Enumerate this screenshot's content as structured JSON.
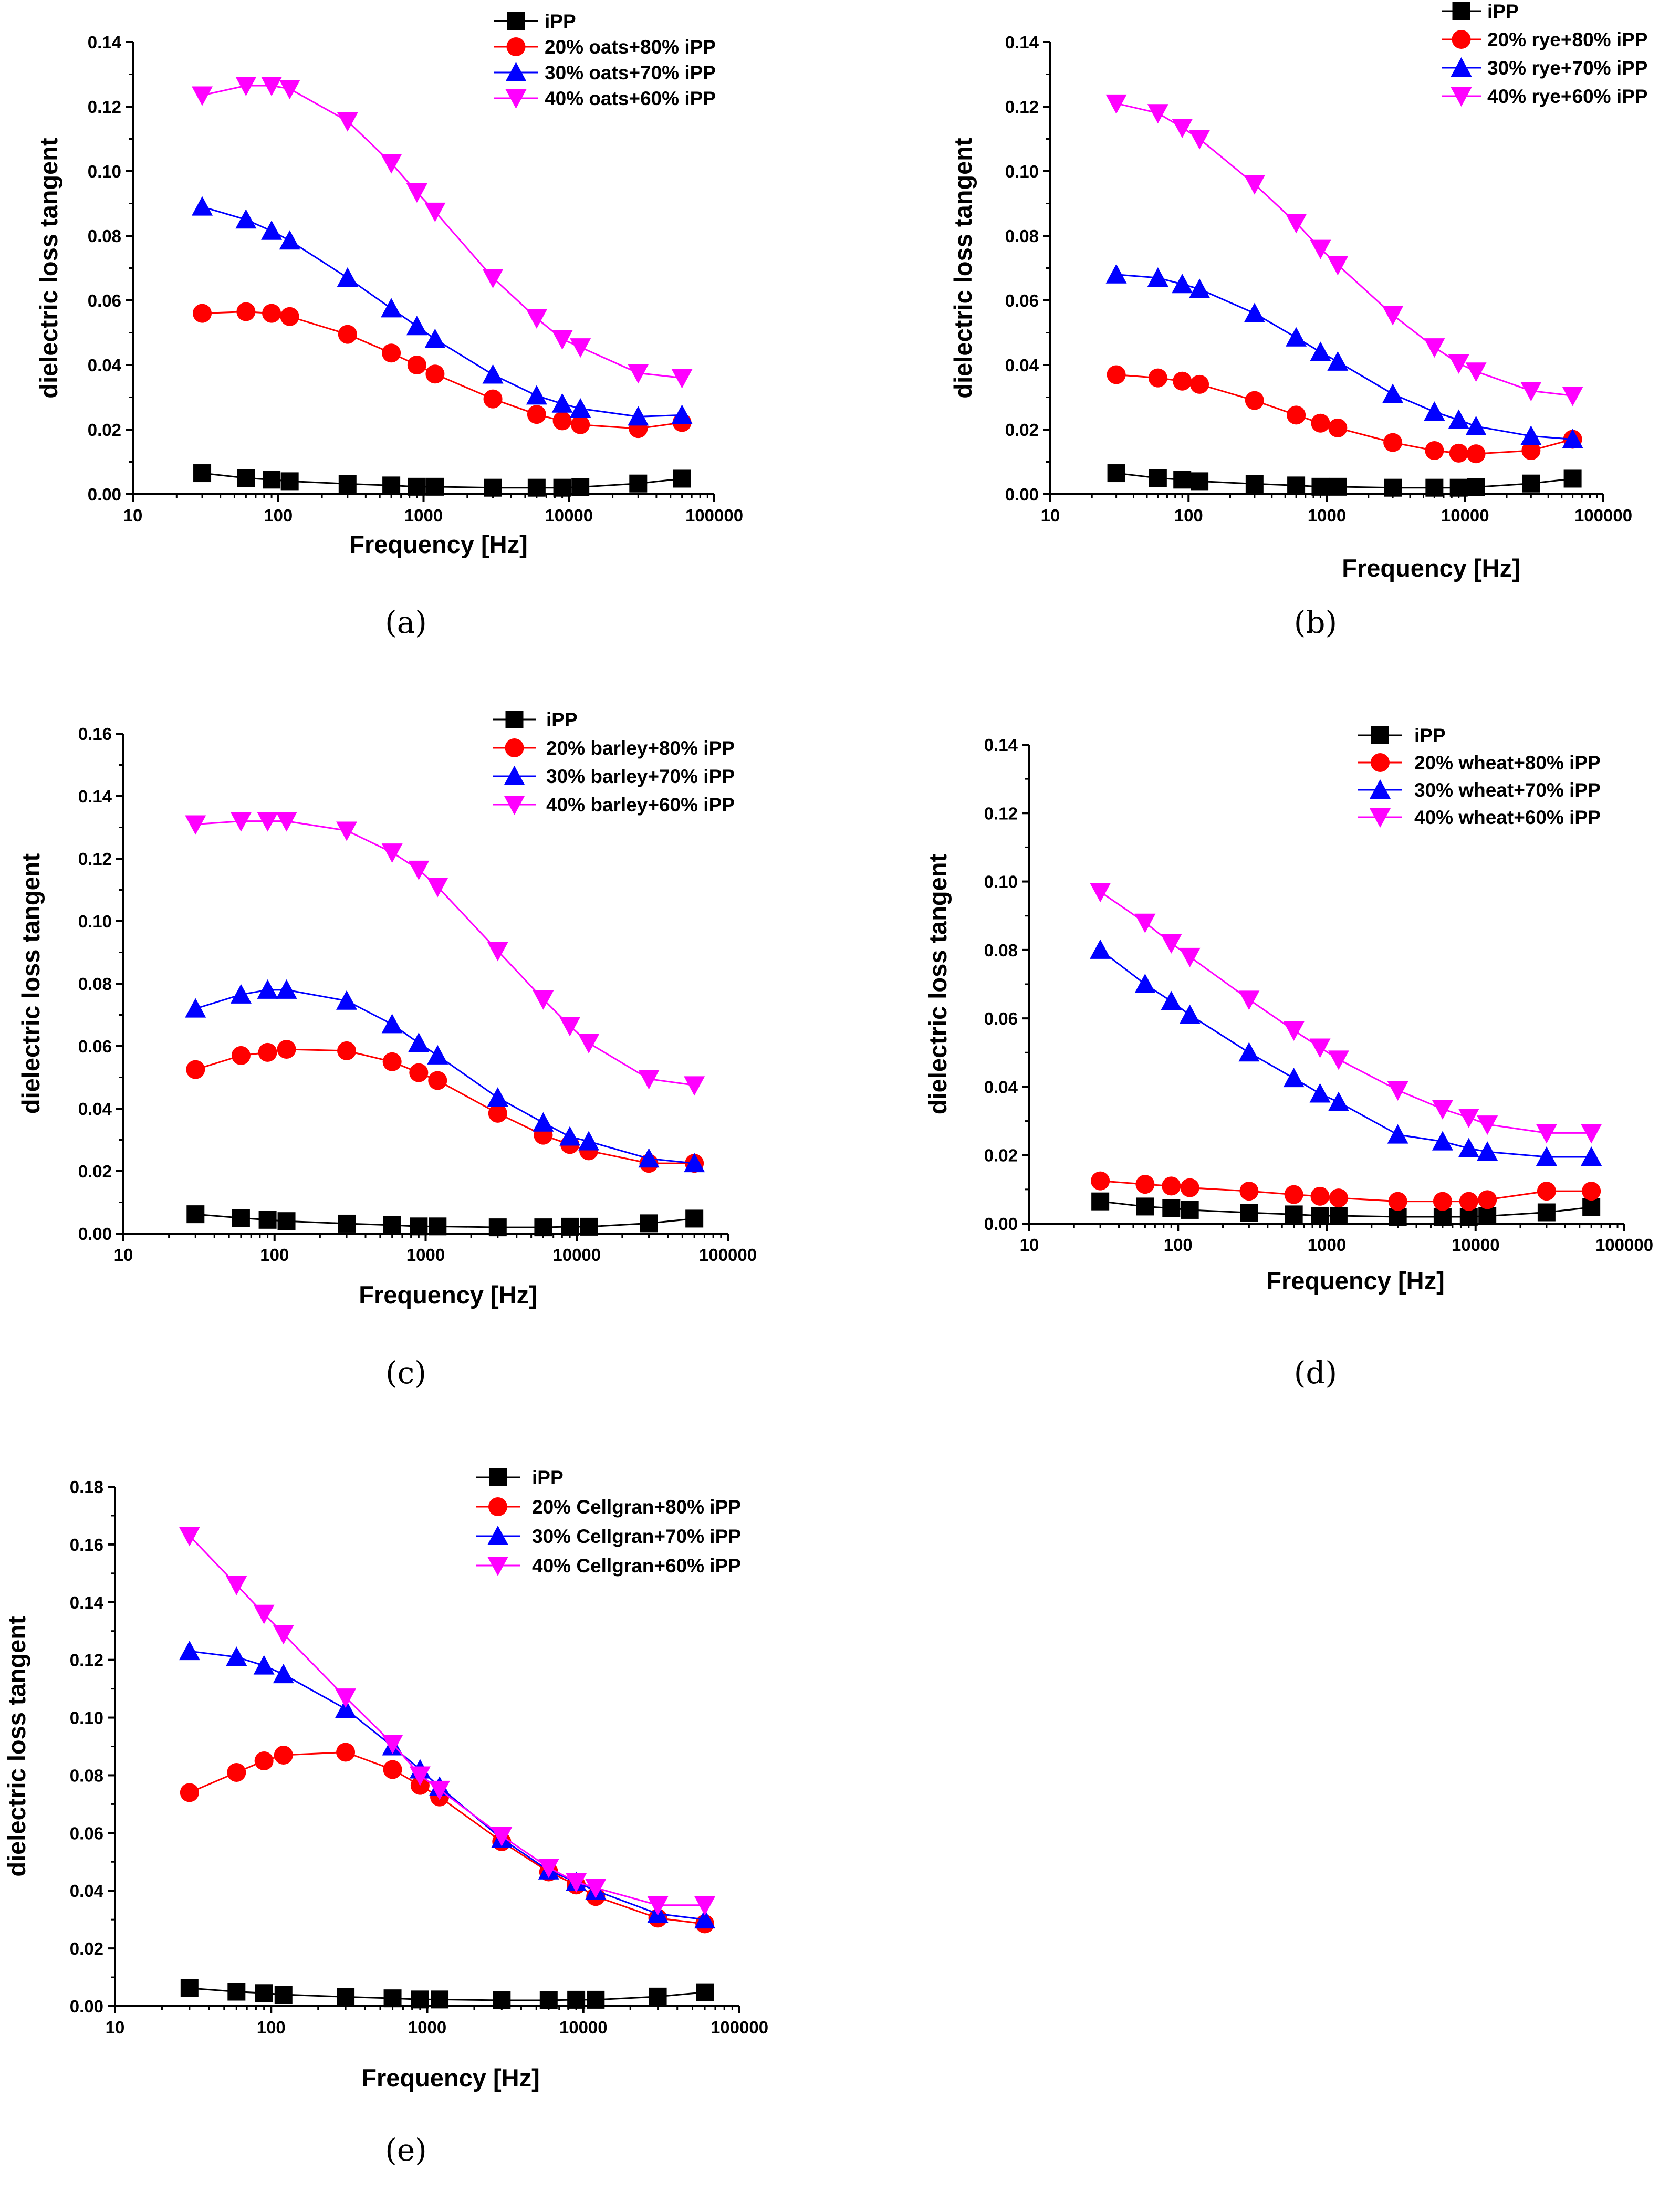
{
  "colors": {
    "iPP": "#000000",
    "20": "#ff0000",
    "30": "#0000ff",
    "40": "#ff00ff"
  },
  "chart_data": [
    {
      "label": "(a)",
      "type": "line",
      "xscale": "log",
      "xlabel": "Frequency [Hz]",
      "ylabel": "dielectric loss tangent",
      "xlim": [
        10,
        100000
      ],
      "ylim": [
        0,
        0.14
      ],
      "xticks": [
        "10",
        "100",
        "1000",
        "10000",
        "100000"
      ],
      "yticks": [
        "0.00",
        "0.02",
        "0.04",
        "0.06",
        "0.08",
        "0.10",
        "0.12",
        "0.14"
      ],
      "legend_position": "top-right",
      "x": [
        30,
        60,
        90,
        120,
        300,
        600,
        900,
        1200,
        3000,
        6000,
        9000,
        12000,
        30000,
        60000
      ],
      "series": [
        {
          "name": "iPP",
          "marker": "square",
          "values": [
            0.0065,
            0.005,
            0.0045,
            0.004,
            0.0032,
            0.0027,
            0.0023,
            0.0023,
            0.002,
            0.002,
            0.002,
            0.0022,
            0.0033,
            0.0048
          ]
        },
        {
          "name": "20% oats+80% iPP",
          "marker": "circle",
          "values": [
            0.056,
            0.0565,
            0.056,
            0.055,
            0.0495,
            0.0437,
            0.04,
            0.0372,
            0.0295,
            0.0247,
            0.0227,
            0.0215,
            0.0203,
            0.0222
          ]
        },
        {
          "name": "30% oats+70% iPP",
          "marker": "triangle-up",
          "values": [
            0.089,
            0.085,
            0.0815,
            0.0785,
            0.067,
            0.0575,
            0.052,
            0.048,
            0.037,
            0.0305,
            0.028,
            0.0265,
            0.024,
            0.0245
          ]
        },
        {
          "name": "40% oats+60% iPP",
          "marker": "triangle-down",
          "values": [
            0.1235,
            0.1265,
            0.1265,
            0.1255,
            0.1155,
            0.1025,
            0.0935,
            0.0875,
            0.067,
            0.0545,
            0.048,
            0.0455,
            0.0375,
            0.036
          ]
        }
      ]
    },
    {
      "label": "(b)",
      "type": "line",
      "xscale": "log",
      "xlabel": "Frequency [Hz]",
      "ylabel": "dielectric loss tangent",
      "xlim": [
        10,
        100000
      ],
      "ylim": [
        0,
        0.14
      ],
      "xticks": [
        "10",
        "100",
        "1000",
        "10000",
        "100000"
      ],
      "yticks": [
        "0.00",
        "0.02",
        "0.04",
        "0.06",
        "0.08",
        "0.10",
        "0.12",
        "0.14"
      ],
      "legend_position": "top-right",
      "x": [
        30,
        60,
        90,
        120,
        300,
        600,
        900,
        1200,
        3000,
        6000,
        9000,
        12000,
        30000,
        60000
      ],
      "series": [
        {
          "name": "iPP",
          "marker": "square",
          "values": [
            0.0065,
            0.005,
            0.0045,
            0.004,
            0.0032,
            0.0027,
            0.0023,
            0.0023,
            0.002,
            0.002,
            0.002,
            0.0022,
            0.0033,
            0.0048
          ]
        },
        {
          "name": "20% rye+80% iPP",
          "marker": "circle",
          "values": [
            0.037,
            0.036,
            0.035,
            0.034,
            0.029,
            0.0245,
            0.022,
            0.0205,
            0.016,
            0.0135,
            0.0127,
            0.0125,
            0.0135,
            0.017
          ]
        },
        {
          "name": "30% rye+70% iPP",
          "marker": "triangle-up",
          "values": [
            0.068,
            0.067,
            0.065,
            0.0635,
            0.056,
            0.0485,
            0.044,
            0.041,
            0.031,
            0.0255,
            0.023,
            0.021,
            0.018,
            0.017
          ]
        },
        {
          "name": "40% rye+60% iPP",
          "marker": "triangle-down",
          "values": [
            0.121,
            0.118,
            0.1135,
            0.11,
            0.096,
            0.084,
            0.076,
            0.071,
            0.0555,
            0.0455,
            0.0405,
            0.038,
            0.032,
            0.0305
          ]
        }
      ]
    },
    {
      "label": "(c)",
      "type": "line",
      "xscale": "log",
      "xlabel": "Frequency [Hz]",
      "ylabel": "dielectric loss tangent",
      "xlim": [
        10,
        100000
      ],
      "ylim": [
        0,
        0.16
      ],
      "xticks": [
        "10",
        "100",
        "1000",
        "10000",
        "100000"
      ],
      "yticks": [
        "0.00",
        "0.02",
        "0.04",
        "0.06",
        "0.08",
        "0.10",
        "0.12",
        "0.14",
        "0.16"
      ],
      "legend_position": "top-right",
      "x": [
        30,
        60,
        90,
        120,
        300,
        600,
        900,
        1200,
        3000,
        6000,
        9000,
        12000,
        30000,
        60000
      ],
      "series": [
        {
          "name": "iPP",
          "marker": "square",
          "values": [
            0.0062,
            0.005,
            0.0044,
            0.004,
            0.0032,
            0.0027,
            0.0023,
            0.0023,
            0.002,
            0.002,
            0.0022,
            0.0022,
            0.0033,
            0.0048
          ]
        },
        {
          "name": "20% barley+80% iPP",
          "marker": "circle",
          "values": [
            0.0525,
            0.057,
            0.058,
            0.059,
            0.0585,
            0.055,
            0.0515,
            0.049,
            0.0385,
            0.0315,
            0.0285,
            0.0265,
            0.0225,
            0.0225
          ]
        },
        {
          "name": "30% barley+70% iPP",
          "marker": "triangle-up",
          "values": [
            0.072,
            0.0765,
            0.078,
            0.078,
            0.0745,
            0.067,
            0.061,
            0.057,
            0.0435,
            0.0355,
            0.031,
            0.0295,
            0.024,
            0.0225
          ]
        },
        {
          "name": "40% barley+60% iPP",
          "marker": "triangle-down",
          "values": [
            0.131,
            0.132,
            0.132,
            0.132,
            0.129,
            0.122,
            0.1165,
            0.111,
            0.0905,
            0.075,
            0.0665,
            0.061,
            0.0495,
            0.0475
          ]
        }
      ]
    },
    {
      "label": "(d)",
      "type": "line",
      "xscale": "log",
      "xlabel": "Frequency [Hz]",
      "ylabel": "dielectric loss tangent",
      "xlim": [
        10,
        100000
      ],
      "ylim": [
        0,
        0.14
      ],
      "xticks": [
        "10",
        "100",
        "1000",
        "10000",
        "100000"
      ],
      "yticks": [
        "0.00",
        "0.02",
        "0.04",
        "0.06",
        "0.08",
        "0.10",
        "0.12",
        "0.14"
      ],
      "legend_position": "top-right",
      "x": [
        30,
        60,
        90,
        120,
        300,
        600,
        900,
        1200,
        3000,
        6000,
        9000,
        12000,
        30000,
        60000
      ],
      "series": [
        {
          "name": "iPP",
          "marker": "square",
          "values": [
            0.0065,
            0.005,
            0.0045,
            0.004,
            0.0032,
            0.0027,
            0.0023,
            0.0023,
            0.002,
            0.002,
            0.002,
            0.0022,
            0.0033,
            0.0048
          ]
        },
        {
          "name": "20% wheat+80% iPP",
          "marker": "circle",
          "values": [
            0.0125,
            0.0115,
            0.011,
            0.0105,
            0.0095,
            0.0085,
            0.008,
            0.0075,
            0.0065,
            0.0065,
            0.0065,
            0.007,
            0.0095,
            0.0095
          ]
        },
        {
          "name": "30% wheat+70% iPP",
          "marker": "triangle-up",
          "values": [
            0.08,
            0.07,
            0.065,
            0.061,
            0.05,
            0.0425,
            0.038,
            0.0355,
            0.026,
            0.024,
            0.022,
            0.021,
            0.0195,
            0.0195
          ]
        },
        {
          "name": "40% wheat+60% iPP",
          "marker": "triangle-down",
          "values": [
            0.097,
            0.088,
            0.082,
            0.078,
            0.0655,
            0.0565,
            0.0515,
            0.048,
            0.039,
            0.0335,
            0.031,
            0.029,
            0.0265,
            0.0265
          ]
        }
      ]
    },
    {
      "label": "(e)",
      "type": "line",
      "xscale": "log",
      "xlabel": "Frequency [Hz]",
      "ylabel": "dielectric loss tangent",
      "xlim": [
        10,
        100000
      ],
      "ylim": [
        0,
        0.18
      ],
      "xticks": [
        "10",
        "100",
        "1000",
        "10000",
        "100000"
      ],
      "yticks": [
        "0.00",
        "0.02",
        "0.04",
        "0.06",
        "0.08",
        "0.10",
        "0.12",
        "0.14",
        "0.16",
        "0.18"
      ],
      "legend_position": "top-right",
      "x": [
        30,
        60,
        90,
        120,
        300,
        600,
        900,
        1200,
        3000,
        6000,
        9000,
        12000,
        30000,
        60000
      ],
      "series": [
        {
          "name": "iPP",
          "marker": "square",
          "values": [
            0.0062,
            0.005,
            0.0045,
            0.004,
            0.0032,
            0.0027,
            0.0023,
            0.0023,
            0.002,
            0.002,
            0.0022,
            0.0022,
            0.0033,
            0.0048
          ]
        },
        {
          "name": "20% Cellgran+80% iPP",
          "marker": "circle",
          "values": [
            0.074,
            0.081,
            0.085,
            0.087,
            0.088,
            0.082,
            0.0765,
            0.0725,
            0.057,
            0.0465,
            0.042,
            0.038,
            0.0305,
            0.0285
          ]
        },
        {
          "name": "30% Cellgran+70% iPP",
          "marker": "triangle-up",
          "values": [
            0.123,
            0.121,
            0.118,
            0.115,
            0.103,
            0.09,
            0.082,
            0.076,
            0.058,
            0.047,
            0.043,
            0.04,
            0.032,
            0.03
          ]
        },
        {
          "name": "40% Cellgran+60% iPP",
          "marker": "triangle-down",
          "values": [
            0.163,
            0.146,
            0.136,
            0.129,
            0.107,
            0.091,
            0.08,
            0.075,
            0.059,
            0.048,
            0.043,
            0.041,
            0.035,
            0.035
          ]
        }
      ]
    }
  ]
}
